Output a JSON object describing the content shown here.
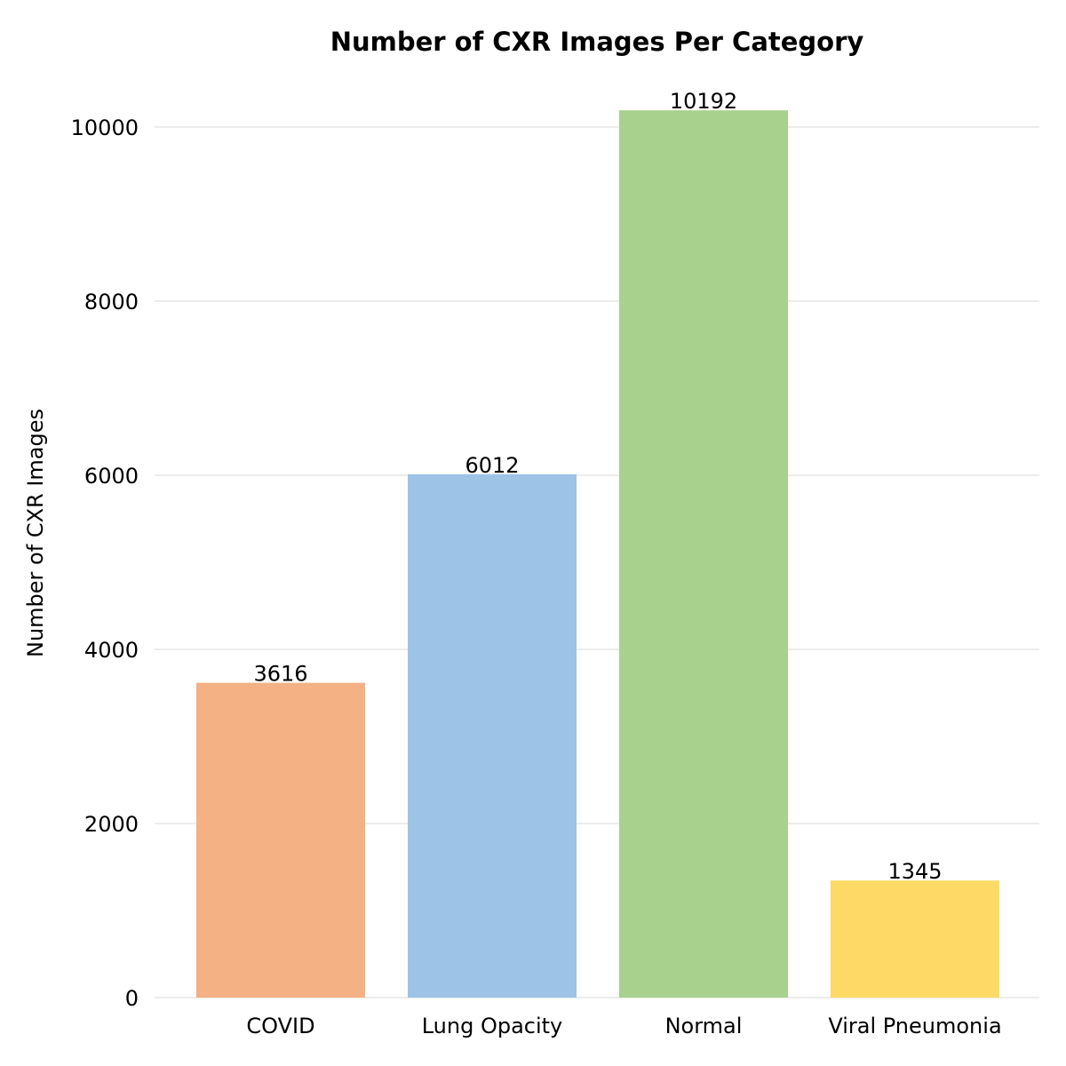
{
  "chart_data": {
    "type": "bar",
    "title": "Number of CXR Images Per Category",
    "xlabel": "",
    "ylabel": "Number of CXR Images",
    "categories": [
      "COVID",
      "Lung Opacity",
      "Normal",
      "Viral Pneumonia"
    ],
    "values": [
      3616,
      6012,
      10192,
      1345
    ],
    "data_labels": [
      "3616",
      "6012",
      "10192",
      "1345"
    ],
    "colors": [
      "#f4b183",
      "#9dc3e6",
      "#a9d18e",
      "#ffd966"
    ],
    "yticks": [
      0,
      2000,
      4000,
      6000,
      8000,
      10000
    ],
    "ytick_labels": [
      "0",
      "2000",
      "4000",
      "6000",
      "8000",
      "10000"
    ],
    "ylim": [
      0,
      10500
    ],
    "grid": true,
    "grid_axis": "y",
    "legend": false
  }
}
